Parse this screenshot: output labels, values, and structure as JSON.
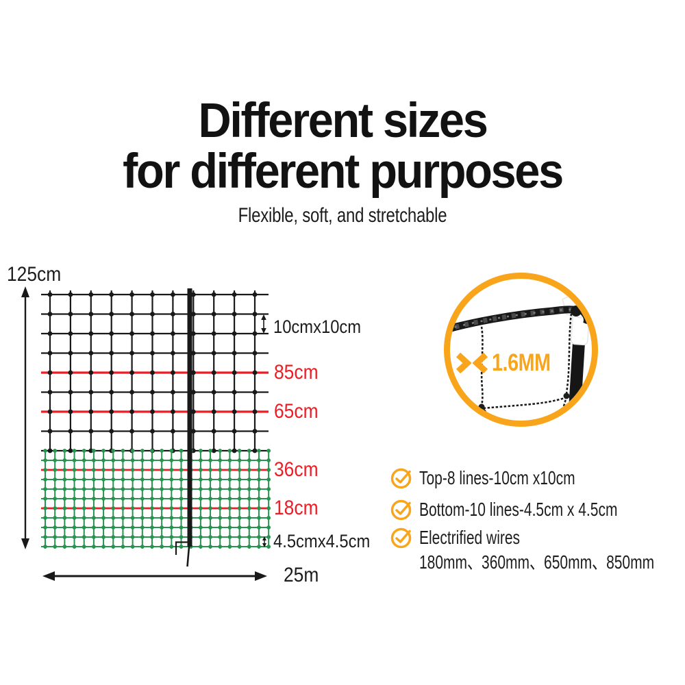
{
  "title": {
    "line1": "Different sizes",
    "line2": "for different purposes",
    "subtitle": "Flexible, soft, and stretchable"
  },
  "net_diagram": {
    "total_height_label": "125cm",
    "total_width_label": "25m",
    "top_mesh_label": "10cmx10cm",
    "bottom_mesh_label": "4.5cmx4.5cm",
    "electrified_height_labels": [
      "85cm",
      "65cm",
      "36cm",
      "18cm"
    ]
  },
  "closeup": {
    "wire_thickness_label": "1.6MM",
    "gauge_icon": "thickness-chevrons"
  },
  "features": {
    "items": [
      "Top-8 lines-10cm x10cm",
      "Bottom-10 lines-4.5cm x 4.5cm",
      "Electrified wires"
    ],
    "note": "180mm、360mm、650mm、850mm"
  },
  "colors": {
    "accent_orange": "#f9a51b",
    "electrified_red": "#ee1c25",
    "mesh_green": "#28934f",
    "net_black": "#191919"
  }
}
